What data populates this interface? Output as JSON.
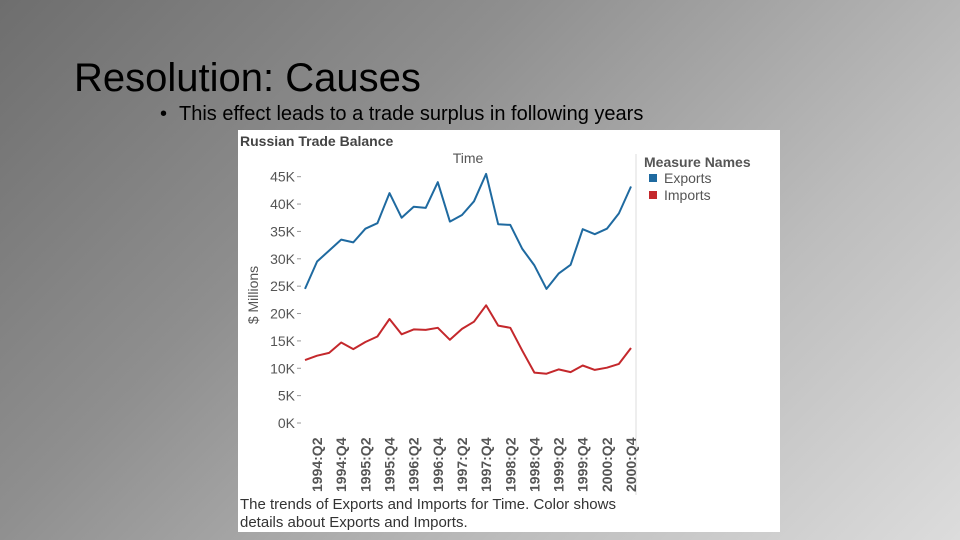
{
  "slide": {
    "title": "Resolution: Causes",
    "bullet": "This effect leads to a trade surplus in following years"
  },
  "chart_data": {
    "type": "line",
    "title": "Russian Trade Balance",
    "xlabel": "Time",
    "ylabel": "$ Millions",
    "ylim": [
      0,
      47500
    ],
    "yticks": [
      0,
      5000,
      10000,
      15000,
      20000,
      25000,
      30000,
      35000,
      40000,
      45000
    ],
    "ytick_labels": [
      "0K",
      "5K",
      "10K",
      "15K",
      "20K",
      "25K",
      "30K",
      "35K",
      "40K",
      "45K"
    ],
    "categories": [
      "1994:Q1",
      "1994:Q2",
      "1994:Q3",
      "1994:Q4",
      "1995:Q1",
      "1995:Q2",
      "1995:Q3",
      "1995:Q4",
      "1996:Q1",
      "1996:Q2",
      "1996:Q3",
      "1996:Q4",
      "1997:Q1",
      "1997:Q2",
      "1997:Q3",
      "1997:Q4",
      "1998:Q1",
      "1998:Q2",
      "1998:Q3",
      "1998:Q4",
      "1999:Q1",
      "1999:Q2",
      "1999:Q3",
      "1999:Q4",
      "2000:Q1",
      "2000:Q2",
      "2000:Q3",
      "2000:Q4"
    ],
    "tick_labels": [
      "1994:Q2",
      "1994:Q4",
      "1995:Q2",
      "1995:Q4",
      "1996:Q2",
      "1996:Q4",
      "1997:Q2",
      "1997:Q4",
      "1998:Q2",
      "1998:Q4",
      "1999:Q2",
      "1999:Q4",
      "2000:Q2",
      "2000:Q4"
    ],
    "legend_title": "Measure Names",
    "legend_position": "right",
    "grid": false,
    "series": [
      {
        "name": "Exports",
        "color": "#1f6aa0",
        "values": [
          24500,
          29500,
          31500,
          33500,
          33000,
          35500,
          36500,
          42000,
          37500,
          39500,
          39300,
          44000,
          36800,
          38000,
          40500,
          45500,
          36300,
          36200,
          31800,
          28800,
          24500,
          27300,
          28900,
          35400,
          34500,
          35500,
          38300,
          43200
        ]
      },
      {
        "name": "Imports",
        "color": "#c4282c",
        "values": [
          11500,
          12300,
          12800,
          14700,
          13500,
          14800,
          15800,
          19000,
          16200,
          17100,
          17000,
          17400,
          15200,
          17200,
          18500,
          21500,
          17800,
          17400,
          13200,
          9200,
          9000,
          9800,
          9300,
          10500,
          9700,
          10100,
          10800,
          13700
        ]
      }
    ],
    "caption": "The trends of Exports and Imports for Time.  Color shows details about Exports and Imports."
  }
}
